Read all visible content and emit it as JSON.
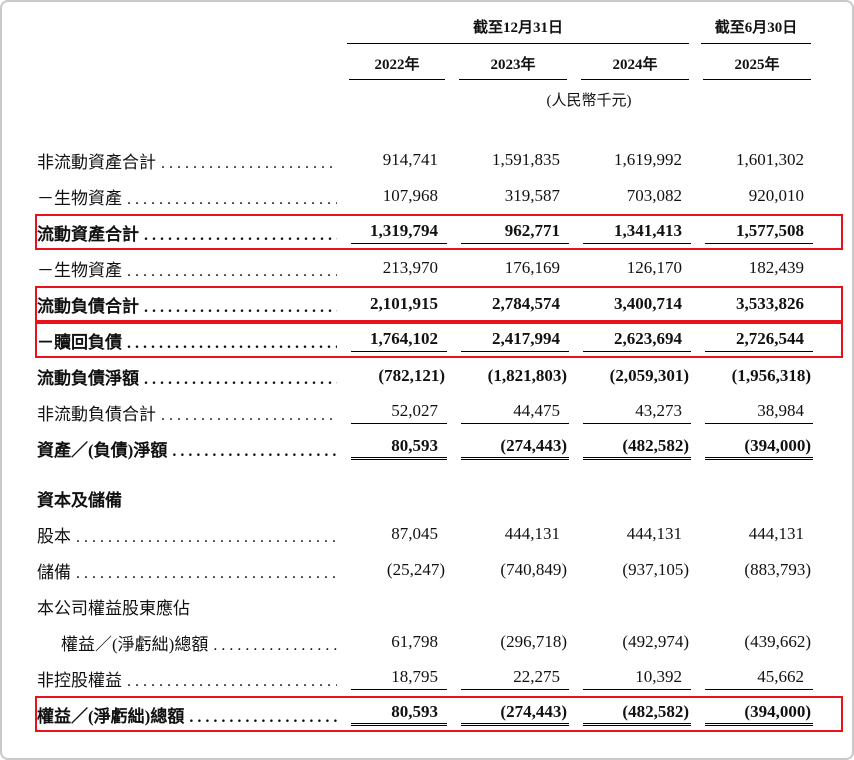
{
  "colors": {
    "highlight_box": "#e8131a",
    "text": "#111111",
    "rule": "#000000"
  },
  "leader": ". . . . . . . . . . . . . . . . . . . . . . . . . . . . . . . . . . . . . . . .",
  "header": {
    "period_dec": "截至12月31日",
    "period_jun": "截至6月30日",
    "years": [
      "2022年",
      "2023年",
      "2024年",
      "2025年"
    ],
    "currency_note": "(人民幣千元)"
  },
  "rows": [
    {
      "label": "非流動資產合計",
      "values": [
        "914,741",
        "1,591,835",
        "1,619,992",
        "1,601,302"
      ]
    },
    {
      "label": "－生物資產",
      "values": [
        "107,968",
        "319,587",
        "703,082",
        "920,010"
      ]
    },
    {
      "label": "流動資產合計",
      "values": [
        "1,319,794",
        "962,771",
        "1,341,413",
        "1,577,508"
      ],
      "highlighted": true,
      "bold": true
    },
    {
      "label": "－生物資產",
      "values": [
        "213,970",
        "176,169",
        "126,170",
        "182,439"
      ]
    },
    {
      "label": "流動負債合計",
      "values": [
        "2,101,915",
        "2,784,574",
        "3,400,714",
        "3,533,826"
      ],
      "highlighted": true,
      "bold": true
    },
    {
      "label": "－贖回負債",
      "values": [
        "1,764,102",
        "2,417,994",
        "2,623,694",
        "2,726,544"
      ],
      "highlighted": true,
      "bold": true
    },
    {
      "label": "流動負債淨額",
      "values": [
        "(782,121)",
        "(1,821,803)",
        "(2,059,301)",
        "(1,956,318)"
      ],
      "bold": true
    },
    {
      "label": "非流動負債合計",
      "values": [
        "52,027",
        "44,475",
        "43,273",
        "38,984"
      ]
    },
    {
      "label": "資產／(負債)淨額",
      "values": [
        "80,593",
        "(274,443)",
        "(482,582)",
        "(394,000)"
      ],
      "bold": true
    },
    {
      "label": "資本及儲備",
      "values": [],
      "bold": true,
      "section": true
    },
    {
      "label": "股本",
      "values": [
        "87,045",
        "444,131",
        "444,131",
        "444,131"
      ]
    },
    {
      "label": "儲備",
      "values": [
        "(25,247)",
        "(740,849)",
        "(937,105)",
        "(883,793)"
      ]
    },
    {
      "label": "本公司權益股東應佔",
      "values": []
    },
    {
      "label": "權益／(淨虧絀)總額",
      "values": [
        "61,798",
        "(296,718)",
        "(492,974)",
        "(439,662)"
      ],
      "indented": true
    },
    {
      "label": "非控股權益",
      "values": [
        "18,795",
        "22,275",
        "10,392",
        "45,662"
      ]
    },
    {
      "label": "權益／(淨虧絀)總額",
      "values": [
        "80,593",
        "(274,443)",
        "(482,582)",
        "(394,000)"
      ],
      "highlighted": true,
      "bold": true
    }
  ]
}
